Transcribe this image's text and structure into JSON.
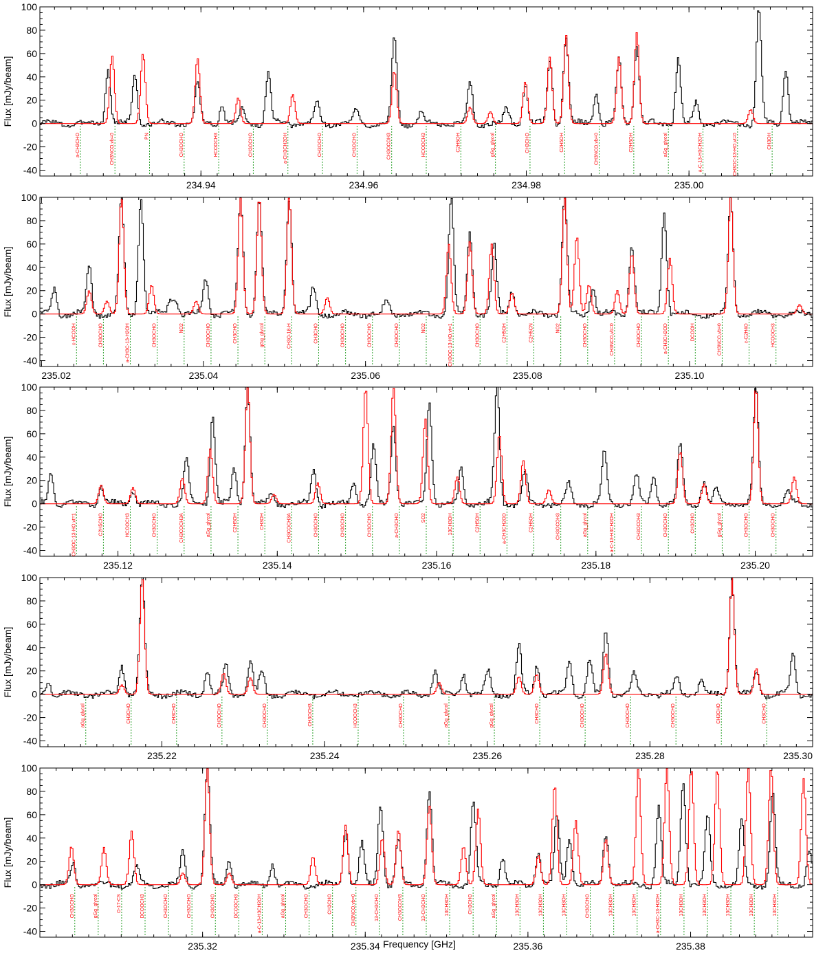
{
  "chart_data": [
    {
      "type": "line",
      "panel": 1,
      "xlabel": "",
      "ylabel": "Flux [mJy/beam]",
      "xlim": [
        234.9202,
        235.0152
      ],
      "ylim": [
        -45,
        100
      ],
      "xticks": [
        "234.94",
        "234.96",
        "234.98",
        "235.00"
      ],
      "yticks": [
        "-40",
        "-20",
        "0",
        "20",
        "40",
        "60",
        "80",
        "100"
      ],
      "series": [
        {
          "color": "#000000",
          "peaks": [
            [
              234.9285,
              48
            ],
            [
              234.9318,
              42
            ],
            [
              234.9395,
              35
            ],
            [
              234.9425,
              15
            ],
            [
              234.945,
              13
            ],
            [
              234.9482,
              43
            ],
            [
              234.9542,
              18
            ],
            [
              234.959,
              11
            ],
            [
              234.9637,
              73
            ],
            [
              234.967,
              9
            ],
            [
              234.973,
              36
            ],
            [
              234.9775,
              13
            ],
            [
              234.9798,
              34
            ],
            [
              234.9828,
              54
            ],
            [
              234.9848,
              74
            ],
            [
              234.9885,
              27
            ],
            [
              234.9913,
              55
            ],
            [
              234.9935,
              68
            ],
            [
              234.9986,
              57
            ],
            [
              235.0008,
              18
            ],
            [
              235.0085,
              100
            ],
            [
              235.0118,
              48
            ]
          ]
        },
        {
          "color": "#ff0000",
          "peaks": [
            [
              234.929,
              58
            ],
            [
              234.9328,
              60
            ],
            [
              234.9395,
              56
            ],
            [
              234.9445,
              22
            ],
            [
              234.9512,
              25
            ],
            [
              234.9637,
              45
            ],
            [
              234.973,
              14
            ],
            [
              234.9755,
              10
            ],
            [
              234.9798,
              36
            ],
            [
              234.9828,
              57
            ],
            [
              234.9848,
              76
            ],
            [
              234.9913,
              57
            ],
            [
              234.9935,
              78
            ],
            [
              235.0075,
              12
            ]
          ]
        }
      ],
      "line_labels": [
        "a-CH3CHO",
        "CH3NCO,vb=0",
        "PN",
        "CH3OCHO",
        "HCOOCH3",
        "CH3OCHO",
        "a-CH3CH2OH",
        "CH3OCHO",
        "CH3OCHO",
        "CH3OCOH3",
        "HCOOCH3",
        "C2H5OH",
        "gGg_glycol",
        "CH3CHO",
        "C2H5OH",
        "CH3NCO,vb=0",
        "C2H5OH",
        "aGg_glycol",
        "a-C-13-H3CH2OH",
        "CH3OC-13-HO,vt=0",
        "CH3OH"
      ]
    },
    {
      "type": "line",
      "panel": 2,
      "xlabel": "",
      "ylabel": "Flux [mJy/beam]",
      "xlim": [
        235.0198,
        235.1152
      ],
      "ylim": [
        -45,
        100
      ],
      "xticks": [
        "235.02",
        "235.04",
        "235.06",
        "235.08",
        "235.10"
      ],
      "yticks": [
        "-40",
        "-20",
        "0",
        "20",
        "40",
        "60",
        "80",
        "100"
      ],
      "series": [
        {
          "color": "#000000",
          "peaks": [
            [
              235.0215,
              22
            ],
            [
              235.0258,
              42
            ],
            [
              235.0298,
              100
            ],
            [
              235.0322,
              100
            ],
            [
              235.0358,
              12
            ],
            [
              235.0365,
              13
            ],
            [
              235.0402,
              30
            ],
            [
              235.0445,
              100
            ],
            [
              235.0468,
              100
            ],
            [
              235.0505,
              100
            ],
            [
              235.0535,
              22
            ],
            [
              235.0625,
              12
            ],
            [
              235.0705,
              100
            ],
            [
              235.0728,
              70
            ],
            [
              235.0758,
              58
            ],
            [
              235.078,
              20
            ],
            [
              235.0845,
              100
            ],
            [
              235.088,
              25
            ],
            [
              235.0928,
              60
            ],
            [
              235.0968,
              88
            ],
            [
              235.105,
              100
            ]
          ]
        },
        {
          "color": "#ff0000",
          "peaks": [
            [
              235.0258,
              20
            ],
            [
              235.028,
              11
            ],
            [
              235.0298,
              100
            ],
            [
              235.0335,
              25
            ],
            [
              235.039,
              11
            ],
            [
              235.0445,
              100
            ],
            [
              235.0468,
              100
            ],
            [
              235.0505,
              100
            ],
            [
              235.0552,
              14
            ],
            [
              235.0702,
              60
            ],
            [
              235.0728,
              62
            ],
            [
              235.0755,
              60
            ],
            [
              235.078,
              18
            ],
            [
              235.0845,
              100
            ],
            [
              235.086,
              67
            ],
            [
              235.0875,
              25
            ],
            [
              235.091,
              20
            ],
            [
              235.0928,
              52
            ],
            [
              235.0975,
              48
            ],
            [
              235.105,
              100
            ],
            [
              235.1135,
              8
            ]
          ]
        }
      ],
      "line_labels": [
        "c-HCOOH",
        "CH3OCHO",
        "a-CH3C-13-H2OH",
        "CH3OCHO",
        "NO2",
        "CH3OCHO",
        "CH3CHO",
        "gGg_glycol",
        "CH3O-18-H",
        "CH3CHO",
        "CH3OCHO",
        "CH3OCHO",
        "CH3OCHO",
        "NO2",
        "CH3OC-13-HO,vt=1",
        "CH3OCHO",
        "C2H5OH",
        "C2H5CN",
        "NO2",
        "CH3OCHO",
        "CH3NCO,vb=0",
        "CH3OCHO",
        "a-CH3CH2OD",
        "DCOOH",
        "CH3NCO,vb=0",
        "c-C2H4O",
        "HCOOCH3"
      ]
    },
    {
      "type": "line",
      "panel": 3,
      "xlabel": "",
      "ylabel": "Flux [mJy/beam]",
      "xlim": [
        235.1102,
        235.2072
      ],
      "ylim": [
        -45,
        100
      ],
      "xticks": [
        "235.12",
        "235.14",
        "235.16",
        "235.18",
        "235.20"
      ],
      "yticks": [
        "-40",
        "-20",
        "0",
        "20",
        "40",
        "60",
        "80",
        "100"
      ],
      "series": [
        {
          "color": "#000000",
          "peaks": [
            [
              235.1115,
              27
            ],
            [
              235.1178,
              15
            ],
            [
              235.1218,
              12
            ],
            [
              235.1285,
              38
            ],
            [
              235.1318,
              77
            ],
            [
              235.1345,
              30
            ],
            [
              235.1362,
              100
            ],
            [
              235.1392,
              10
            ],
            [
              235.1445,
              30
            ],
            [
              235.1495,
              20
            ],
            [
              235.152,
              50
            ],
            [
              235.1545,
              68
            ],
            [
              235.159,
              90
            ],
            [
              235.163,
              30
            ],
            [
              235.1675,
              100
            ],
            [
              235.171,
              28
            ],
            [
              235.1765,
              18
            ],
            [
              235.181,
              45
            ],
            [
              235.185,
              25
            ],
            [
              235.1872,
              23
            ],
            [
              235.1905,
              52
            ],
            [
              235.1935,
              20
            ],
            [
              235.195,
              12
            ],
            [
              235.2,
              100
            ],
            [
              235.204,
              10
            ]
          ]
        },
        {
          "color": "#ff0000",
          "peaks": [
            [
              235.1178,
              16
            ],
            [
              235.1218,
              14
            ],
            [
              235.128,
              22
            ],
            [
              235.1315,
              47
            ],
            [
              235.1362,
              100
            ],
            [
              235.1395,
              8
            ],
            [
              235.145,
              18
            ],
            [
              235.151,
              100
            ],
            [
              235.1545,
              100
            ],
            [
              235.1585,
              73
            ],
            [
              235.1625,
              23
            ],
            [
              235.1678,
              60
            ],
            [
              235.1708,
              37
            ],
            [
              235.174,
              12
            ],
            [
              235.1905,
              45
            ],
            [
              235.1935,
              17
            ],
            [
              235.2,
              100
            ],
            [
              235.2048,
              23
            ]
          ]
        }
      ],
      "line_labels": [
        "CH3OC-13-HO,vt=1",
        "C2H5CHO",
        "HCOOCH3",
        "CH3OCHO",
        "CH3COCH3A",
        "aGg_glycol",
        "C2H5OH",
        "CH3OH",
        "CH3COCH3A",
        "CH3OCHO",
        "CH3OCHO",
        "CH3OCHO",
        "a-CH3CHO",
        "SO2",
        "13CH3OH",
        "C2H5OH",
        "a-CH3CH2OD",
        "C2H5OH",
        "CH3OCOH3",
        "aGg_glycol",
        "a-C-13-H3CH2OH",
        "CH3OCOH3",
        "CH3OCHO",
        "CH3CHO",
        "gGg_glycol",
        "CH3OCHO",
        "CH3OCHO"
      ]
    },
    {
      "type": "line",
      "panel": 4,
      "xlabel": "",
      "ylabel": "Flux [mJy/beam]",
      "xlim": [
        235.205,
        235.3
      ],
      "ylim": [
        -45,
        100
      ],
      "xticks": [
        "235.22",
        "235.24",
        "235.26",
        "235.28",
        "235.30"
      ],
      "yticks": [
        "-40",
        "-20",
        "0",
        "20",
        "40",
        "60",
        "80",
        "100"
      ],
      "series": [
        {
          "color": "#000000",
          "peaks": [
            [
              235.206,
              10
            ],
            [
              235.215,
              25
            ],
            [
              235.2175,
              100
            ],
            [
              235.2255,
              20
            ],
            [
              235.2278,
              25
            ],
            [
              235.2308,
              28
            ],
            [
              235.2322,
              20
            ],
            [
              235.2535,
              22
            ],
            [
              235.257,
              18
            ],
            [
              235.26,
              20
            ],
            [
              235.2638,
              42
            ],
            [
              235.266,
              25
            ],
            [
              235.27,
              30
            ],
            [
              235.2725,
              30
            ],
            [
              235.2745,
              55
            ],
            [
              235.278,
              17
            ],
            [
              235.2832,
              15
            ],
            [
              235.2862,
              12
            ],
            [
              235.29,
              100
            ],
            [
              235.293,
              20
            ],
            [
              235.2975,
              35
            ]
          ]
        },
        {
          "color": "#ff0000",
          "peaks": [
            [
              235.215,
              8
            ],
            [
              235.2175,
              100
            ],
            [
              235.2275,
              18
            ],
            [
              235.2308,
              14
            ],
            [
              235.254,
              10
            ],
            [
              235.2638,
              15
            ],
            [
              235.266,
              17
            ],
            [
              235.2745,
              35
            ],
            [
              235.29,
              100
            ],
            [
              235.293,
              22
            ]
          ]
        }
      ],
      "line_labels": [
        "aGg_glycol",
        "CH3CHO",
        "CH3CHO",
        "CH3OCHO",
        "CH3OCHO",
        "CH3OCH3",
        "HCOOCH3",
        "CH3OCHO",
        "aGg_glycol",
        "gGg_glycol",
        "CH3CHO",
        "CH3OCHO",
        "CH3OCHO",
        "CH3OCHO",
        "CH3CHO",
        "CH3CHO"
      ]
    },
    {
      "type": "line",
      "panel": 5,
      "xlabel": "Frequency [GHz]",
      "ylabel": "Flux [mJy/beam]",
      "xlim": [
        235.3,
        235.395
      ],
      "ylim": [
        -45,
        100
      ],
      "xticks": [
        "235.32",
        "235.34",
        "235.36",
        "235.38"
      ],
      "yticks": [
        "-40",
        "-20",
        "0",
        "20",
        "40",
        "60",
        "80",
        "100"
      ],
      "series": [
        {
          "color": "#000000",
          "peaks": [
            [
              235.304,
              18
            ],
            [
              235.3118,
              15
            ],
            [
              235.3175,
              28
            ],
            [
              235.3205,
              100
            ],
            [
              235.3232,
              22
            ],
            [
              235.3285,
              18
            ],
            [
              235.3375,
              48
            ],
            [
              235.3395,
              35
            ],
            [
              235.3418,
              70
            ],
            [
              235.344,
              40
            ],
            [
              235.3478,
              80
            ],
            [
              235.3532,
              72
            ],
            [
              235.3568,
              25
            ],
            [
              235.3612,
              28
            ],
            [
              235.3635,
              60
            ],
            [
              235.365,
              40
            ],
            [
              235.3695,
              45
            ],
            [
              235.376,
              68
            ],
            [
              235.379,
              90
            ],
            [
              235.382,
              60
            ],
            [
              235.3862,
              55
            ],
            [
              235.39,
              80
            ],
            [
              235.3945,
              30
            ]
          ]
        },
        {
          "color": "#ff0000",
          "peaks": [
            [
              235.3038,
              33
            ],
            [
              235.3078,
              32
            ],
            [
              235.3112,
              46
            ],
            [
              235.3175,
              10
            ],
            [
              235.3205,
              100
            ],
            [
              235.3232,
              10
            ],
            [
              235.3335,
              24
            ],
            [
              235.3375,
              51
            ],
            [
              235.342,
              40
            ],
            [
              235.344,
              47
            ],
            [
              235.3478,
              68
            ],
            [
              235.352,
              33
            ],
            [
              235.3538,
              65
            ],
            [
              235.3612,
              25
            ],
            [
              235.3632,
              86
            ],
            [
              235.3658,
              55
            ],
            [
              235.3695,
              39
            ],
            [
              235.3735,
              100
            ],
            [
              235.377,
              100
            ],
            [
              235.38,
              100
            ],
            [
              235.3832,
              100
            ],
            [
              235.387,
              100
            ],
            [
              235.3898,
              100
            ],
            [
              235.3938,
              91
            ]
          ]
        }
      ],
      "line_labels": [
        "CH3OCHO",
        "gGg_glycol",
        "O-17-CS",
        "DCOOCH3",
        "CH3OCHO",
        "CH3OCHO",
        "CH3OCHO",
        "DCOOCH3",
        "a-C-13-H3CH2OH",
        "aGg_glycol",
        "CH3OCHO",
        "CH3CHO",
        "CH3NCO,vb=0",
        "13-CH3CHO",
        "CH3OCOH3",
        "13-CH3CHO",
        "13CH3OH",
        "CH3CHO",
        "aGg_glycol",
        "13CH3OH",
        "13CH3OH",
        "13CH3OH",
        "CH3OCHO",
        "13CH3OH",
        "13CH3OH",
        "a-CH3C-13-H2OH",
        "13CH3OH",
        "13CH3OH",
        "13CH3OH",
        "13CH3OH",
        "13CH3OH"
      ]
    }
  ]
}
